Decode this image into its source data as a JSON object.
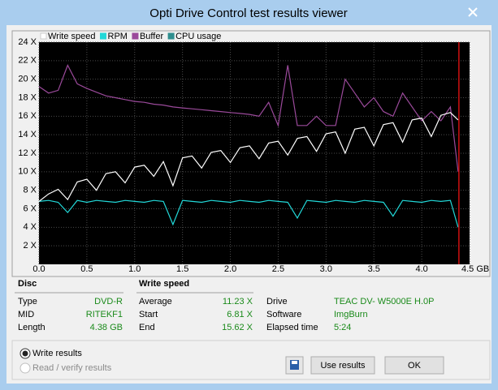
{
  "window": {
    "title": "Opti Drive Control test results viewer"
  },
  "chart_data": {
    "type": "line",
    "x": [
      0,
      0.1,
      0.2,
      0.3,
      0.4,
      0.5,
      0.6,
      0.7,
      0.8,
      0.9,
      1.0,
      1.1,
      1.2,
      1.3,
      1.4,
      1.5,
      1.6,
      1.7,
      1.8,
      1.9,
      2.0,
      2.1,
      2.2,
      2.3,
      2.4,
      2.5,
      2.6,
      2.7,
      2.8,
      2.9,
      3.0,
      3.1,
      3.2,
      3.3,
      3.4,
      3.5,
      3.6,
      3.7,
      3.8,
      3.9,
      4.0,
      4.1,
      4.2,
      4.3,
      4.38
    ],
    "series": [
      {
        "name": "Write speed",
        "color": "#ffffff",
        "values": [
          6.8,
          7.6,
          8.1,
          7.0,
          8.9,
          9.2,
          8.0,
          9.8,
          10.0,
          8.8,
          10.5,
          10.7,
          9.5,
          11.1,
          8.5,
          11.5,
          11.7,
          10.4,
          12.1,
          12.3,
          11.0,
          12.6,
          12.8,
          11.4,
          13.1,
          13.3,
          11.8,
          13.6,
          13.8,
          12.2,
          14.1,
          14.3,
          12.0,
          14.6,
          14.8,
          12.8,
          15.1,
          15.3,
          13.2,
          15.6,
          15.8,
          13.8,
          16.1,
          16.4,
          15.6
        ]
      },
      {
        "name": "RPM",
        "color": "#22d8d8",
        "values": [
          6.8,
          6.9,
          6.7,
          5.6,
          6.9,
          6.7,
          6.9,
          6.8,
          6.7,
          6.9,
          6.8,
          6.7,
          6.9,
          6.8,
          4.3,
          6.9,
          6.8,
          6.7,
          6.9,
          6.8,
          6.7,
          6.9,
          6.8,
          6.7,
          6.9,
          6.8,
          6.7,
          5.0,
          6.9,
          6.8,
          6.7,
          6.9,
          6.8,
          6.7,
          6.9,
          6.8,
          6.7,
          5.2,
          6.9,
          6.8,
          6.7,
          6.9,
          6.8,
          6.9,
          4.0
        ]
      },
      {
        "name": "Buffer",
        "color": "#9b4a9b",
        "values": [
          19.2,
          18.5,
          18.8,
          21.5,
          19.5,
          19.0,
          18.6,
          18.2,
          18.0,
          17.8,
          17.6,
          17.5,
          17.3,
          17.2,
          17.0,
          16.9,
          16.8,
          16.7,
          16.6,
          16.5,
          16.4,
          16.3,
          16.2,
          16.0,
          17.5,
          15.0,
          21.5,
          15.0,
          15.0,
          16.0,
          15.0,
          15.0,
          20.0,
          18.5,
          17.0,
          18.0,
          16.5,
          16.0,
          18.5,
          17.0,
          15.5,
          16.5,
          15.5,
          17.0,
          10.0
        ]
      },
      {
        "name": "CPU usage",
        "color": "#2f8f8f",
        "values": [
          null,
          null,
          null,
          null,
          null,
          null,
          null,
          null,
          null,
          null,
          null,
          null,
          null,
          null,
          null,
          null,
          null,
          null,
          null,
          null,
          null,
          null,
          null,
          null,
          null,
          null,
          null,
          null,
          null,
          null,
          null,
          null,
          null,
          null,
          null,
          null,
          null,
          null,
          null,
          null,
          null,
          null,
          null,
          null,
          null
        ]
      }
    ],
    "xlim": [
      0,
      4.5
    ],
    "ylim": [
      0,
      24
    ],
    "xticks": [
      {
        "value": 0,
        "label": "0.0"
      },
      0.5,
      {
        "value": 1,
        "label": "1.0"
      },
      1.5,
      {
        "value": 2,
        "label": "2.0"
      },
      2.5,
      {
        "value": 3,
        "label": "3.0"
      },
      3.5,
      {
        "value": 4,
        "label": "4.0"
      },
      {
        "value": 4.5,
        "label": "4.5 GB"
      }
    ],
    "yticks": [
      {
        "value": 2,
        "label": "2 X"
      },
      {
        "value": 4,
        "label": "4 X"
      },
      {
        "value": 6,
        "label": "6 X"
      },
      {
        "value": 8,
        "label": "8 X"
      },
      {
        "value": 10,
        "label": "10 X"
      },
      {
        "value": 12,
        "label": "12 X"
      },
      {
        "value": 14,
        "label": "14 X"
      },
      {
        "value": 16,
        "label": "16 X"
      },
      {
        "value": 18,
        "label": "18 X"
      },
      {
        "value": 20,
        "label": "20 X"
      },
      {
        "value": 22,
        "label": "22 X"
      },
      {
        "value": 24,
        "label": "24 X"
      }
    ],
    "grid": true
  },
  "disc": {
    "heading": "Disc",
    "rows": [
      [
        "Type",
        "DVD-R"
      ],
      [
        "MID",
        "RITEKF1"
      ],
      [
        "Length",
        "4.38 GB"
      ]
    ]
  },
  "write_speed": {
    "heading": "Write speed",
    "rows": [
      [
        "Average",
        "11.23 X"
      ],
      [
        "Start",
        "6.81 X"
      ],
      [
        "End",
        "15.62 X"
      ]
    ]
  },
  "drive_info": {
    "rows": [
      [
        "Drive",
        "TEAC DV- W5000E H.0P"
      ],
      [
        "Software",
        "ImgBurn"
      ],
      [
        "Elapsed time",
        "5:24"
      ]
    ]
  },
  "options": [
    "Write results",
    "Read / verify results"
  ],
  "buttons": [
    "Use results",
    "OK"
  ]
}
